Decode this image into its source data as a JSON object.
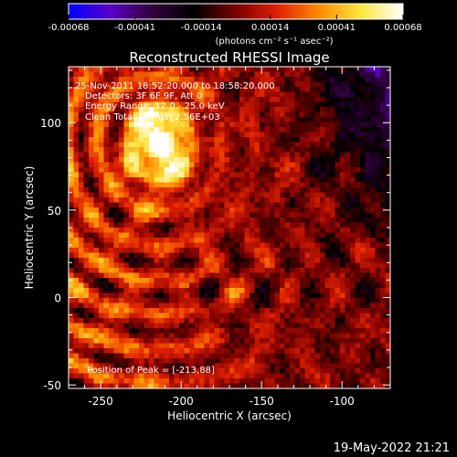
{
  "chart_data": {
    "type": "heatmap",
    "title": "Reconstructed RHESSI Image",
    "xlabel": "Heliocentric X (arcsec)",
    "ylabel": "Heliocentric Y (arcsec)",
    "xlim": [
      -270,
      -70
    ],
    "ylim": [
      -52,
      132
    ],
    "x_ticks": [
      "-250",
      "-200",
      "-150",
      "-100"
    ],
    "x_tick_values": [
      -250,
      -200,
      -150,
      -100
    ],
    "y_ticks": [
      "100",
      "50",
      "0",
      "-50"
    ],
    "y_tick_values": [
      100,
      50,
      0,
      -50
    ],
    "colorbar": {
      "ticks": [
        "-0.00068",
        "-0.00041",
        "-0.00014",
        "0.00014",
        "0.00041",
        "0.00068"
      ],
      "range": [
        -0.00068,
        0.00068
      ],
      "unit_label": "(photons cm⁻² s⁻¹ asec⁻²)",
      "colormap": [
        "#0000ff",
        "#5a00c8",
        "#32003c",
        "#000000",
        "#7a0000",
        "#e02000",
        "#ff8c00",
        "#ffe640",
        "#ffffff"
      ]
    },
    "annotations": [
      "25-Nov-2011 18:52:20.000 to 18:58:20.000",
      "Detectors: 3F 6F 9F, Att 0",
      "Energy Range: 12.0 - 25.0 keV",
      "Clean    Total counts: 2.56E+03"
    ],
    "peak_label": "Position of Peak = [-213,88]",
    "peak": [
      -213,
      88
    ]
  },
  "timestamp": "19-May-2022 21:21"
}
